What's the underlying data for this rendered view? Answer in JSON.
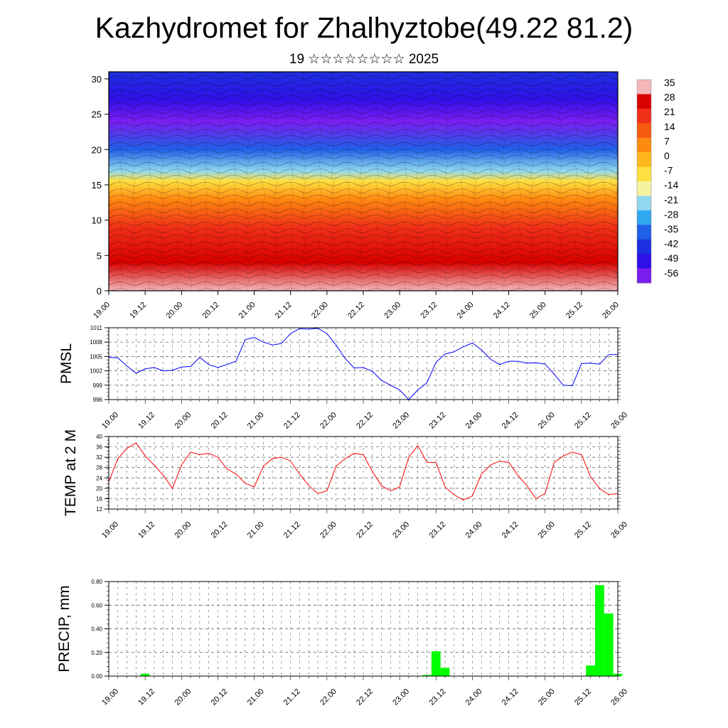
{
  "title": "Kazhydromet for Zhalhyztobe(49.22 81.2)",
  "subtitle": "19 ☆☆☆☆☆☆☆☆ 2025",
  "x_ticks": [
    "19.00",
    "19.12",
    "20.00",
    "20.12",
    "21.00",
    "21.12",
    "22.00",
    "22.12",
    "23.00",
    "23.12",
    "24.00",
    "24.12",
    "25.00",
    "25.12",
    "26.00"
  ],
  "chart_data": [
    {
      "type": "heatmap",
      "title": "",
      "xlabel": "",
      "ylabel": "",
      "x_ticks": [
        "19.00",
        "19.12",
        "20.00",
        "20.12",
        "21.00",
        "21.12",
        "22.00",
        "22.12",
        "23.00",
        "23.12",
        "24.00",
        "24.12",
        "25.00",
        "25.12",
        "26.00"
      ],
      "y_ticks": [
        0,
        5,
        10,
        15,
        20,
        25,
        30
      ],
      "ylim": [
        0,
        31
      ],
      "colorbar_labels": [
        "35",
        "28",
        "21",
        "14",
        "7",
        "0",
        "-7",
        "-14",
        "-21",
        "-28",
        "-35",
        "-42",
        "-49",
        "-56"
      ],
      "colorbar_colors": [
        "#f4b6b6",
        "#d80000",
        "#f03018",
        "#f85a10",
        "#ff8a10",
        "#ffb81c",
        "#ffe040",
        "#f6f2a0",
        "#90d8f0",
        "#30a8f0",
        "#2060e8",
        "#1c30e0",
        "#3010e8",
        "#7a1ef0"
      ],
      "profile": [
        {
          "level": 0,
          "value": 32
        },
        {
          "level": 4,
          "value": 28
        },
        {
          "level": 9,
          "value": 18
        },
        {
          "level": 13,
          "value": 4
        },
        {
          "level": 15.5,
          "value": -10
        },
        {
          "level": 17,
          "value": -22
        },
        {
          "level": 20,
          "value": -38
        },
        {
          "level": 24,
          "value": -54
        },
        {
          "level": 27,
          "value": -48
        },
        {
          "level": 31,
          "value": -40
        }
      ]
    },
    {
      "type": "line",
      "ylabel": "PMSL",
      "ylim": [
        996,
        1011
      ],
      "y_ticks": [
        996,
        999,
        1002,
        1005,
        1008,
        1011
      ],
      "x_ticks": [
        "19.00",
        "19.12",
        "20.00",
        "20.12",
        "21.00",
        "21.12",
        "22.00",
        "22.12",
        "23.00",
        "23.12",
        "24.00",
        "24.12",
        "25.00",
        "25.12",
        "26.00"
      ],
      "color": "#0000ff",
      "x": [
        0,
        1,
        2,
        3,
        4,
        5,
        6,
        7,
        8,
        9,
        10,
        11,
        12,
        13,
        14,
        15,
        16,
        17,
        18,
        19,
        20,
        21,
        22,
        23,
        24,
        25,
        26,
        27,
        28,
        29,
        30,
        31,
        32,
        33,
        34,
        35,
        36,
        37,
        38,
        39,
        40,
        41,
        42,
        43,
        44,
        45,
        46,
        47,
        48,
        49,
        50,
        51,
        52,
        53,
        54,
        55,
        56
      ],
      "y": [
        1004.8,
        1004.7,
        1003.0,
        1001.5,
        1002.4,
        1002.7,
        1002.0,
        1002.1,
        1002.8,
        1002.9,
        1004.8,
        1003.3,
        1002.7,
        1003.3,
        1004.0,
        1008.5,
        1009.0,
        1008.0,
        1007.4,
        1007.7,
        1009.8,
        1010.8,
        1010.7,
        1010.9,
        1009.8,
        1007.4,
        1004.6,
        1002.6,
        1002.7,
        1001.9,
        1000.0,
        999.0,
        998.0,
        996.0,
        998.0,
        999.5,
        1003.8,
        1005.5,
        1006.0,
        1007.0,
        1007.8,
        1006.4,
        1004.4,
        1003.3,
        1004.0,
        1004.0,
        1003.6,
        1003.7,
        1003.4,
        1001.3,
        999.0,
        998.9,
        1003.5,
        1003.6,
        1003.4,
        1005.4,
        1005.4
      ],
      "x_count": 56
    },
    {
      "type": "line",
      "ylabel": "TEMP at 2 M",
      "ylim": [
        12,
        40
      ],
      "y_ticks": [
        12,
        16,
        20,
        24,
        28,
        32,
        36,
        40
      ],
      "x_ticks": [
        "19.00",
        "19.12",
        "20.00",
        "20.12",
        "21.00",
        "21.12",
        "22.00",
        "22.12",
        "23.00",
        "23.12",
        "24.00",
        "24.12",
        "25.00",
        "25.12",
        "26.00"
      ],
      "color": "#ff0000",
      "x": [
        0,
        1,
        2,
        3,
        4,
        5,
        6,
        7,
        8,
        9,
        10,
        11,
        12,
        13,
        14,
        15,
        16,
        17,
        18,
        19,
        20,
        21,
        22,
        23,
        24,
        25,
        26,
        27,
        28,
        29,
        30,
        31,
        32,
        33,
        34,
        35,
        36,
        37,
        38,
        39,
        40,
        41,
        42,
        43,
        44,
        45,
        46,
        47,
        48,
        49,
        50,
        51,
        52,
        53,
        54,
        55,
        56
      ],
      "y": [
        22.5,
        31.5,
        35.5,
        37.5,
        32.5,
        29.0,
        25.0,
        20.0,
        29.0,
        34.0,
        33.0,
        33.5,
        32.0,
        27.5,
        25.5,
        22.0,
        20.5,
        28.5,
        31.5,
        32.0,
        30.5,
        25.5,
        21.0,
        18.0,
        19.0,
        28.5,
        31.5,
        33.5,
        33.0,
        26.5,
        21.0,
        19.0,
        20.5,
        32.0,
        36.5,
        30.0,
        30.0,
        20.5,
        17.5,
        15.5,
        17.0,
        25.5,
        29.0,
        30.5,
        30.0,
        25.0,
        21.0,
        16.0,
        18.0,
        30.0,
        32.5,
        34.0,
        33.0,
        24.5,
        20.0,
        17.5,
        18.0
      ],
      "x_count": 56
    },
    {
      "type": "bar",
      "ylabel": "PRECIP, mm",
      "ylim": [
        0,
        0.8
      ],
      "y_ticks": [
        "0.00",
        "0.20",
        "0.40",
        "0.60",
        "0.80"
      ],
      "x_ticks": [
        "19.00",
        "19.12",
        "20.00",
        "20.12",
        "21.00",
        "21.12",
        "22.00",
        "22.12",
        "23.00",
        "23.12",
        "24.00",
        "24.12",
        "25.00",
        "25.12",
        "26.00"
      ],
      "color": "#00ff00",
      "bars": [
        {
          "x": 4,
          "value": 0.02
        },
        {
          "x": 35,
          "value": 0.01
        },
        {
          "x": 36,
          "value": 0.21
        },
        {
          "x": 37,
          "value": 0.07
        },
        {
          "x": 53,
          "value": 0.09
        },
        {
          "x": 54,
          "value": 0.77
        },
        {
          "x": 55,
          "value": 0.53
        },
        {
          "x": 56,
          "value": 0.02
        }
      ],
      "x_count": 56
    }
  ]
}
